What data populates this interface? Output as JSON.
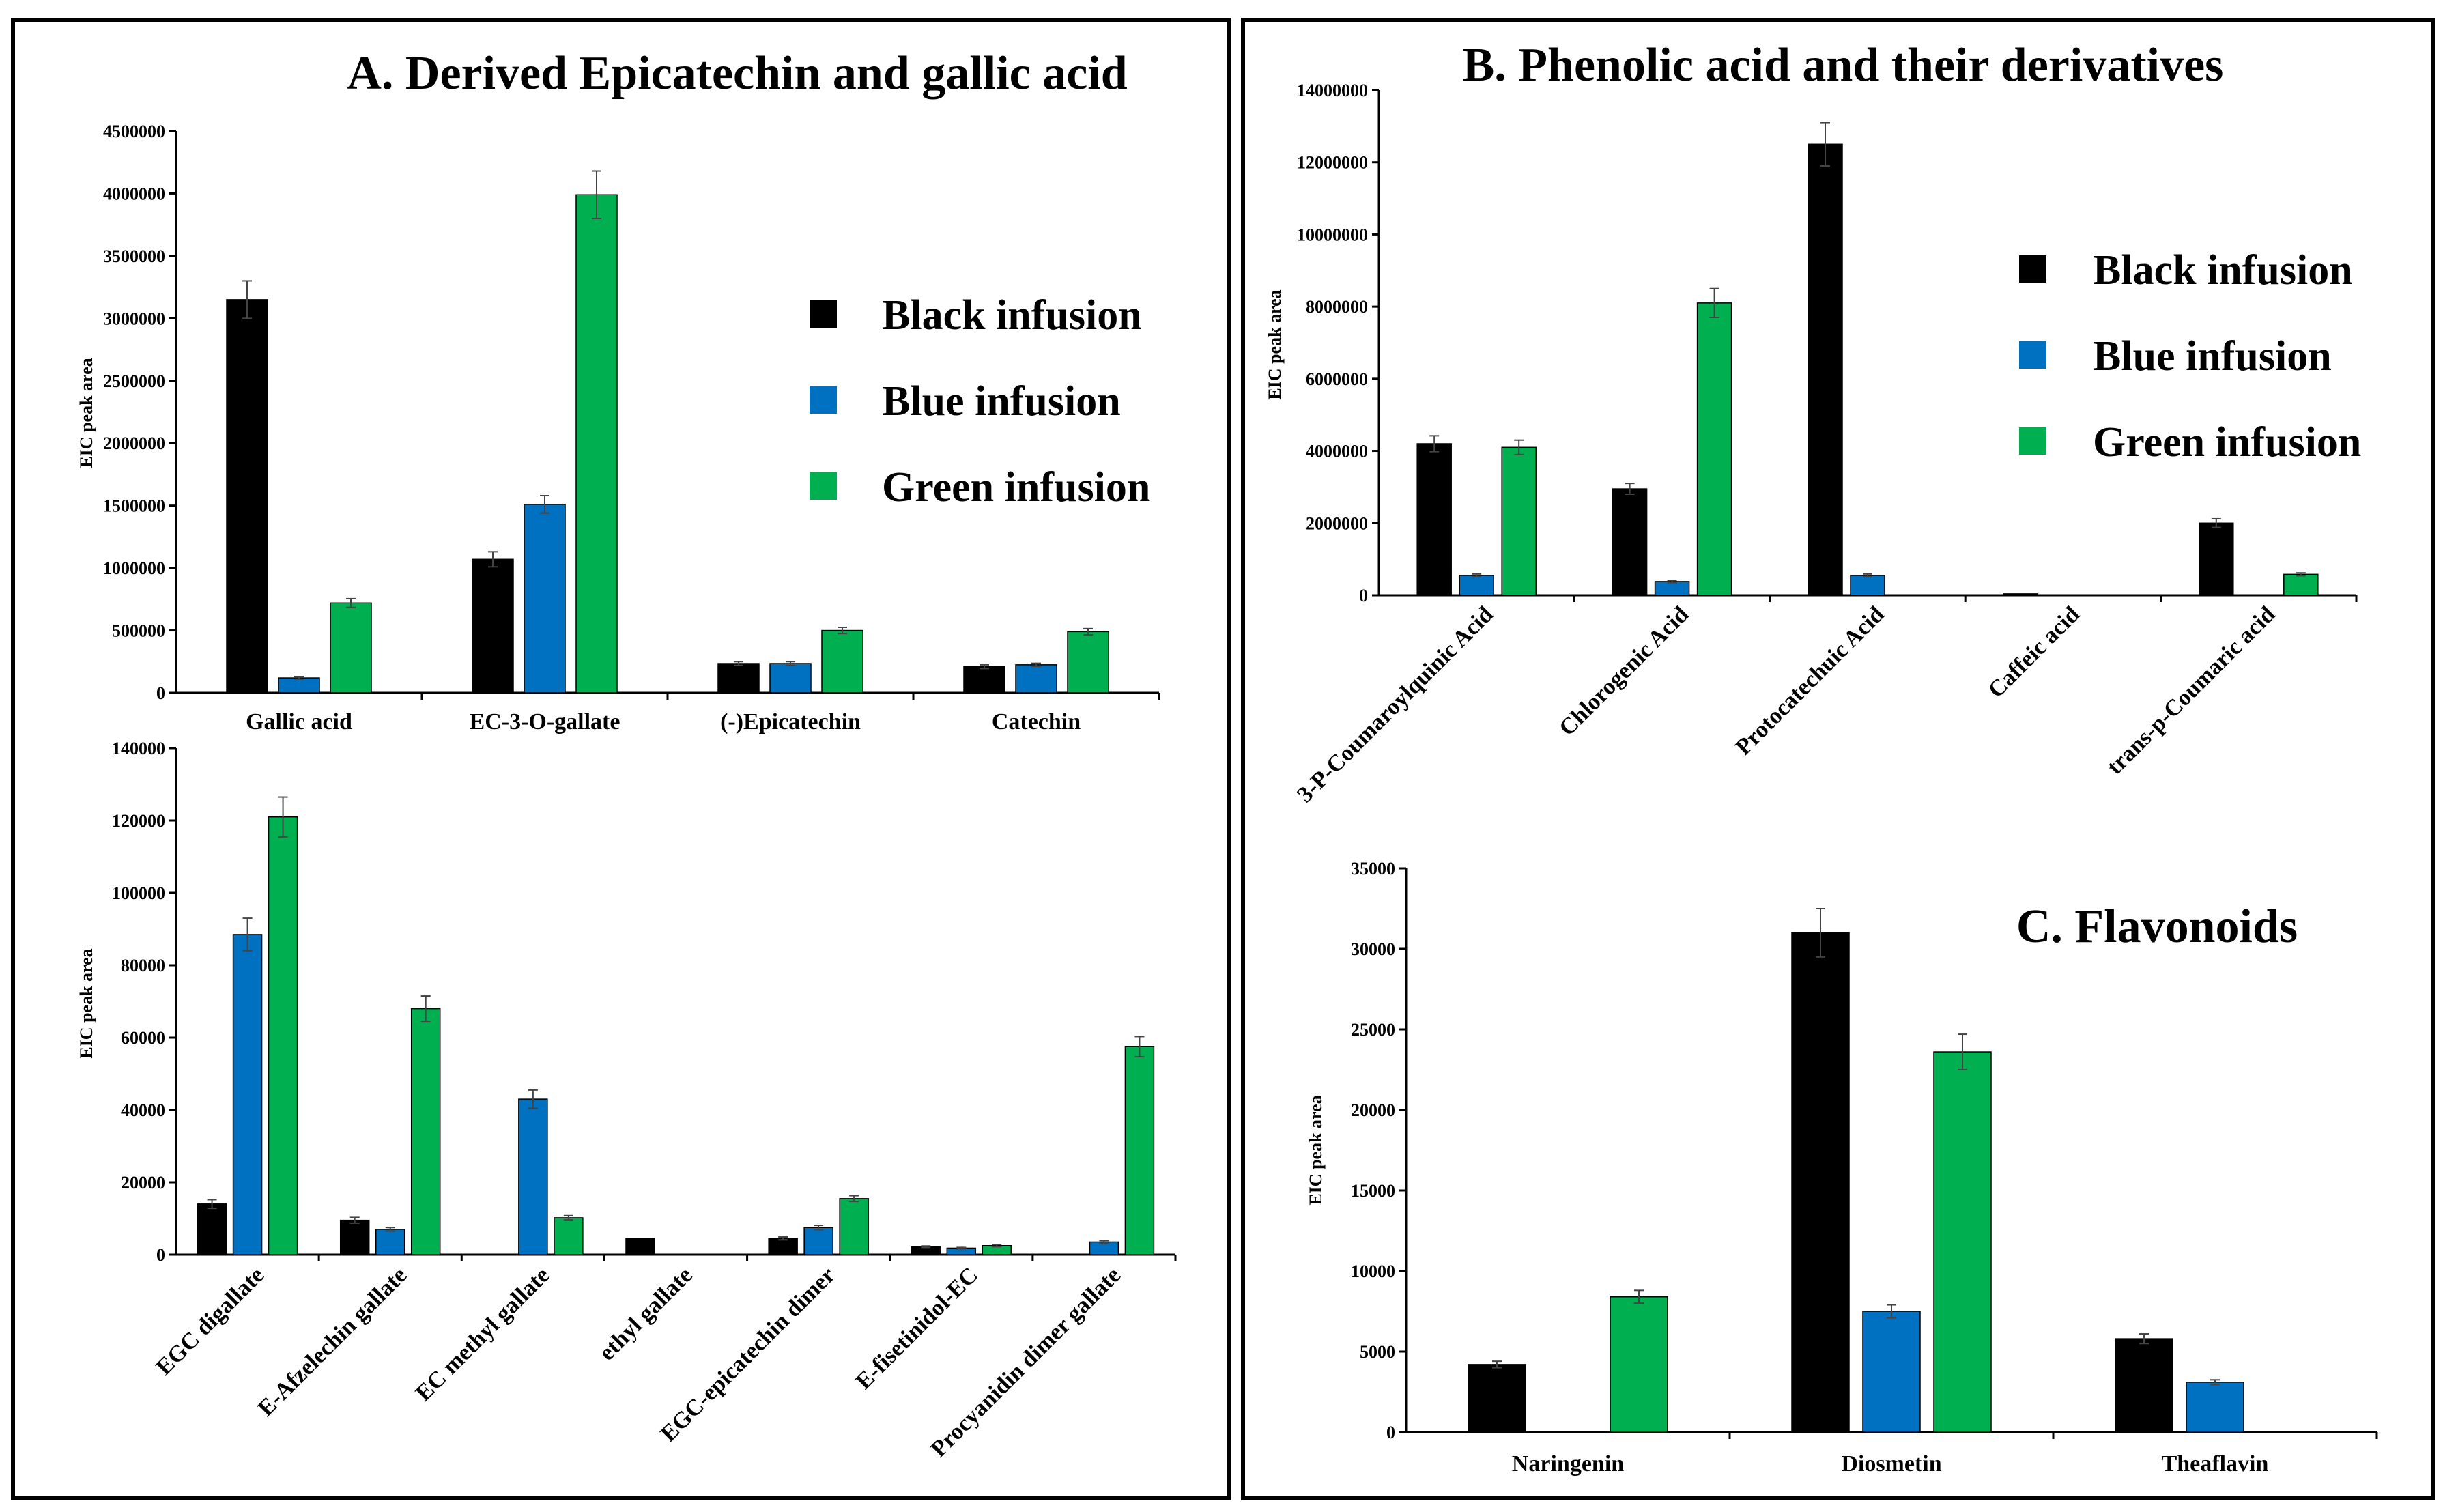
{
  "colors": {
    "black": "#000000",
    "blue": "#0070C0",
    "green": "#00B050"
  },
  "legend": {
    "black": "Black infusion",
    "blue": "Blue infusion",
    "green": "Green infusion"
  },
  "chart_data": [
    {
      "id": "A1",
      "type": "bar",
      "title": "A. Derived Epicatechin and gallic acid",
      "ylabel": "EIC peak area",
      "xlabel": "",
      "ylim": [
        0,
        4500000
      ],
      "yticks": [
        0,
        500000,
        1000000,
        1500000,
        2000000,
        2500000,
        3000000,
        3500000,
        4000000,
        4500000
      ],
      "categories": [
        "Gallic acid",
        "EC-3-O-gallate",
        "(-)Epicatechin",
        "Catechin"
      ],
      "series": [
        {
          "name": "Black infusion",
          "values": [
            3150000,
            1070000,
            235000,
            210000
          ],
          "errors": [
            150000,
            60000,
            15000,
            15000
          ]
        },
        {
          "name": "Blue infusion",
          "values": [
            120000,
            1510000,
            235000,
            225000
          ],
          "errors": [
            10000,
            70000,
            15000,
            12000
          ]
        },
        {
          "name": "Green infusion",
          "values": [
            720000,
            3990000,
            500000,
            490000
          ],
          "errors": [
            35000,
            190000,
            25000,
            25000
          ]
        }
      ]
    },
    {
      "id": "A2",
      "type": "bar",
      "title": "",
      "ylabel": "EIC peak area",
      "xlabel": "",
      "ylim": [
        0,
        140000
      ],
      "yticks": [
        0,
        20000,
        40000,
        60000,
        80000,
        100000,
        120000,
        140000
      ],
      "categories": [
        "EGC digallate",
        "E-Afzelechin gallate",
        "EC methyl gallate",
        "ethyl gallate",
        "EGC-epicatechin dimer",
        "E-fisetinidol-EC",
        "Procyanidin dimer gallate"
      ],
      "series": [
        {
          "name": "Black infusion",
          "values": [
            14000,
            9500,
            0,
            4500,
            4500,
            2200,
            0
          ],
          "errors": [
            1200,
            800,
            0,
            0,
            400,
            200,
            0
          ]
        },
        {
          "name": "Blue infusion",
          "values": [
            88500,
            7000,
            43000,
            0,
            7500,
            1800,
            3500
          ],
          "errors": [
            4500,
            500,
            2500,
            0,
            600,
            200,
            400
          ]
        },
        {
          "name": "Green infusion",
          "values": [
            121000,
            68000,
            10200,
            0,
            15500,
            2500,
            57500
          ],
          "errors": [
            5500,
            3500,
            600,
            0,
            800,
            300,
            2800
          ]
        }
      ]
    },
    {
      "id": "B",
      "type": "bar",
      "title": "B. Phenolic acid and their derivatives",
      "ylabel": "EIC peak area",
      "xlabel": "",
      "ylim": [
        0,
        14000000
      ],
      "yticks": [
        0,
        2000000,
        4000000,
        6000000,
        8000000,
        10000000,
        12000000,
        14000000
      ],
      "categories": [
        "3-P-Coumaroylquinic Acid",
        "Chlorogenic Acid",
        "Protocatechuic Acid",
        "Caffeic acid",
        "trans-p-Coumaric acid"
      ],
      "series": [
        {
          "name": "Black infusion",
          "values": [
            4200000,
            2950000,
            12500000,
            40000,
            2000000
          ],
          "errors": [
            220000,
            150000,
            600000,
            0,
            120000
          ]
        },
        {
          "name": "Blue infusion",
          "values": [
            550000,
            380000,
            550000,
            0,
            0
          ],
          "errors": [
            40000,
            30000,
            40000,
            0,
            0
          ]
        },
        {
          "name": "Green infusion",
          "values": [
            4100000,
            8100000,
            0,
            0,
            580000
          ],
          "errors": [
            200000,
            400000,
            0,
            0,
            40000
          ]
        }
      ]
    },
    {
      "id": "C",
      "type": "bar",
      "title": "C. Flavonoids",
      "ylabel": "EIC peak area",
      "xlabel": "",
      "ylim": [
        0,
        35000
      ],
      "yticks": [
        0,
        5000,
        10000,
        15000,
        20000,
        25000,
        30000,
        35000
      ],
      "categories": [
        "Naringenin",
        "Diosmetin",
        "Theaflavin"
      ],
      "series": [
        {
          "name": "Black infusion",
          "values": [
            4200,
            31000,
            5800
          ],
          "errors": [
            200,
            1500,
            300
          ]
        },
        {
          "name": "Blue infusion",
          "values": [
            0,
            7500,
            3100
          ],
          "errors": [
            0,
            400,
            150
          ]
        },
        {
          "name": "Green infusion",
          "values": [
            8400,
            23600,
            0
          ],
          "errors": [
            400,
            1100,
            0
          ]
        }
      ]
    }
  ]
}
